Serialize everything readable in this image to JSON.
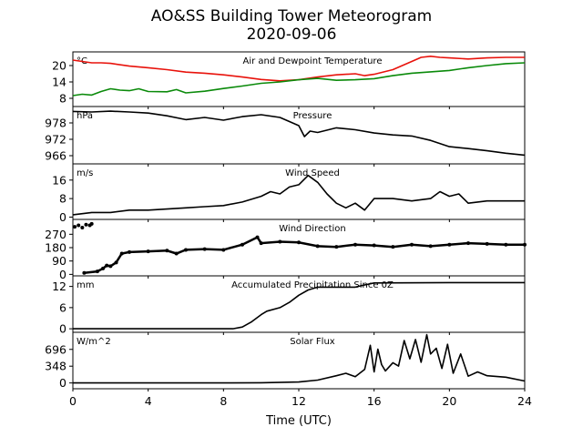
{
  "figure": {
    "title": "AO&SS Building Tower Meteorogram",
    "subtitle": "2020-09-06",
    "xlabel": "Time (UTC)",
    "x_ticks": [
      0,
      4,
      8,
      12,
      16,
      20,
      24
    ],
    "x_range": [
      0,
      24
    ]
  },
  "chart_data": [
    {
      "type": "line",
      "title": "Air and Dewpoint Temperature",
      "unit": "°C",
      "ylim": [
        5,
        25
      ],
      "y_ticks": [
        8,
        14,
        20
      ],
      "series": [
        {
          "color": "#e8120b",
          "x": [
            0,
            0.5,
            1,
            1.5,
            2,
            3,
            4,
            5,
            6,
            7,
            8,
            9,
            10,
            11,
            12,
            13,
            14,
            15,
            15.5,
            16,
            17,
            18,
            18.5,
            19,
            19.5,
            20,
            21,
            22,
            23,
            24
          ],
          "y": [
            22,
            21.5,
            21,
            21,
            20.8,
            19.8,
            19.2,
            18.5,
            17.6,
            17.2,
            16.6,
            15.8,
            14.9,
            14.4,
            14.8,
            15.8,
            16.6,
            17.0,
            16.3,
            16.8,
            18.5,
            21.5,
            23.0,
            23.4,
            23.0,
            22.8,
            22.4,
            22.8,
            23.0,
            23.0
          ]
        },
        {
          "color": "#0a8a0a",
          "x": [
            0,
            0.5,
            1,
            1.5,
            2,
            2.5,
            3,
            3.5,
            4,
            5,
            5.5,
            6,
            7,
            8,
            9,
            10,
            11,
            12,
            13,
            14,
            15,
            16,
            17,
            18,
            19,
            20,
            21,
            22,
            23,
            24
          ],
          "y": [
            9,
            9.5,
            9.2,
            10.5,
            11.5,
            11,
            10.8,
            11.5,
            10.5,
            10.4,
            11.2,
            10.0,
            10.6,
            11.6,
            12.5,
            13.5,
            14.0,
            14.8,
            15.3,
            14.6,
            14.8,
            15.2,
            16.3,
            17.2,
            17.7,
            18.2,
            19.2,
            20.0,
            20.7,
            21.0
          ]
        }
      ]
    },
    {
      "type": "line",
      "title": "Pressure",
      "unit": "hPa",
      "ylim": [
        963,
        984
      ],
      "y_ticks": [
        966,
        972,
        978
      ],
      "series": [
        {
          "color": "#000000",
          "x": [
            0,
            1,
            2,
            3,
            4,
            5,
            6,
            7,
            8,
            9,
            10,
            11,
            11.5,
            12,
            12.3,
            12.6,
            13,
            14,
            15,
            16,
            17,
            18,
            19,
            20,
            21,
            22,
            23,
            24
          ],
          "y": [
            982.2,
            982.0,
            982.3,
            982.0,
            981.6,
            980.6,
            979.2,
            980.0,
            979.0,
            980.3,
            981.0,
            980.0,
            978.5,
            977.0,
            973.0,
            975.0,
            974.5,
            976.2,
            975.5,
            974.3,
            973.6,
            973.2,
            971.6,
            969.3,
            968.6,
            967.8,
            966.9,
            966.2
          ]
        }
      ]
    },
    {
      "type": "line",
      "title": "Wind Speed",
      "unit": "m/s",
      "ylim": [
        -1,
        23
      ],
      "y_ticks": [
        0,
        8,
        16
      ],
      "series": [
        {
          "color": "#000000",
          "x": [
            0,
            1,
            2,
            3,
            4,
            5,
            6,
            7,
            8,
            9,
            10,
            10.5,
            11,
            11.5,
            12,
            12.5,
            13,
            13.5,
            14,
            14.5,
            15,
            15.5,
            16,
            17,
            18,
            19,
            19.5,
            20,
            20.5,
            21,
            22,
            23,
            24
          ],
          "y": [
            1,
            2,
            2,
            3,
            3,
            3.5,
            4,
            4.5,
            5,
            6.5,
            9,
            11,
            10,
            13,
            14,
            18,
            15,
            10,
            6,
            4,
            6,
            3,
            8,
            8,
            7,
            8,
            11,
            9,
            10,
            6,
            7,
            7,
            7
          ]
        }
      ]
    },
    {
      "type": "scatter",
      "title": "Wind Direction",
      "unit": "",
      "ylim": [
        -10,
        370
      ],
      "y_ticks": [
        0,
        90,
        180,
        270
      ],
      "series": [
        {
          "color": "#000000",
          "x": [
            0.1,
            0.3,
            0.5,
            0.7,
            0.9,
            1.0,
            0.6,
            1.3,
            1.6,
            1.8,
            2.0,
            2.3,
            2.6,
            3,
            4,
            5,
            5.5,
            6,
            7,
            8,
            9,
            9.8,
            10,
            11,
            12,
            13,
            14,
            15,
            16,
            17,
            18,
            19,
            20,
            21,
            22,
            23,
            24
          ],
          "y": [
            320,
            330,
            315,
            335,
            330,
            340,
            10,
            20,
            40,
            60,
            55,
            80,
            140,
            150,
            155,
            160,
            140,
            165,
            170,
            165,
            200,
            250,
            210,
            220,
            215,
            190,
            185,
            200,
            195,
            185,
            200,
            190,
            200,
            210,
            205,
            200,
            200
          ]
        }
      ]
    },
    {
      "type": "area",
      "title": "Accumulated Precipitation Since 0Z",
      "unit": "mm",
      "ylim": [
        -1,
        15
      ],
      "y_ticks": [
        0,
        6,
        12
      ],
      "series": [
        {
          "color": "#000000",
          "x": [
            0,
            8.5,
            9,
            9.5,
            10,
            10.3,
            11,
            11.5,
            12,
            12.5,
            13,
            14,
            15,
            15.3,
            16,
            20,
            24
          ],
          "y": [
            0,
            0,
            0.5,
            2,
            4,
            5,
            6,
            7.5,
            9.5,
            11,
            11.8,
            11.8,
            11.8,
            12.2,
            13,
            13.1,
            13.1
          ]
        }
      ]
    },
    {
      "type": "line",
      "title": "Solar Flux",
      "unit": "W/m^2",
      "ylim": [
        -120,
        1050
      ],
      "y_ticks": [
        0,
        348,
        696
      ],
      "series": [
        {
          "color": "#000000",
          "x": [
            0,
            8,
            10,
            12,
            13,
            14,
            14.5,
            15,
            15.5,
            15.8,
            16,
            16.2,
            16.4,
            16.6,
            17,
            17.3,
            17.6,
            17.9,
            18.2,
            18.5,
            18.8,
            19.0,
            19.3,
            19.6,
            19.9,
            20.2,
            20.6,
            21,
            21.5,
            22,
            23,
            24
          ],
          "y": [
            0,
            0,
            5,
            20,
            60,
            150,
            200,
            130,
            280,
            780,
            230,
            700,
            380,
            250,
            420,
            350,
            880,
            500,
            900,
            430,
            1000,
            600,
            720,
            300,
            800,
            200,
            600,
            140,
            230,
            150,
            120,
            40
          ]
        }
      ]
    }
  ]
}
